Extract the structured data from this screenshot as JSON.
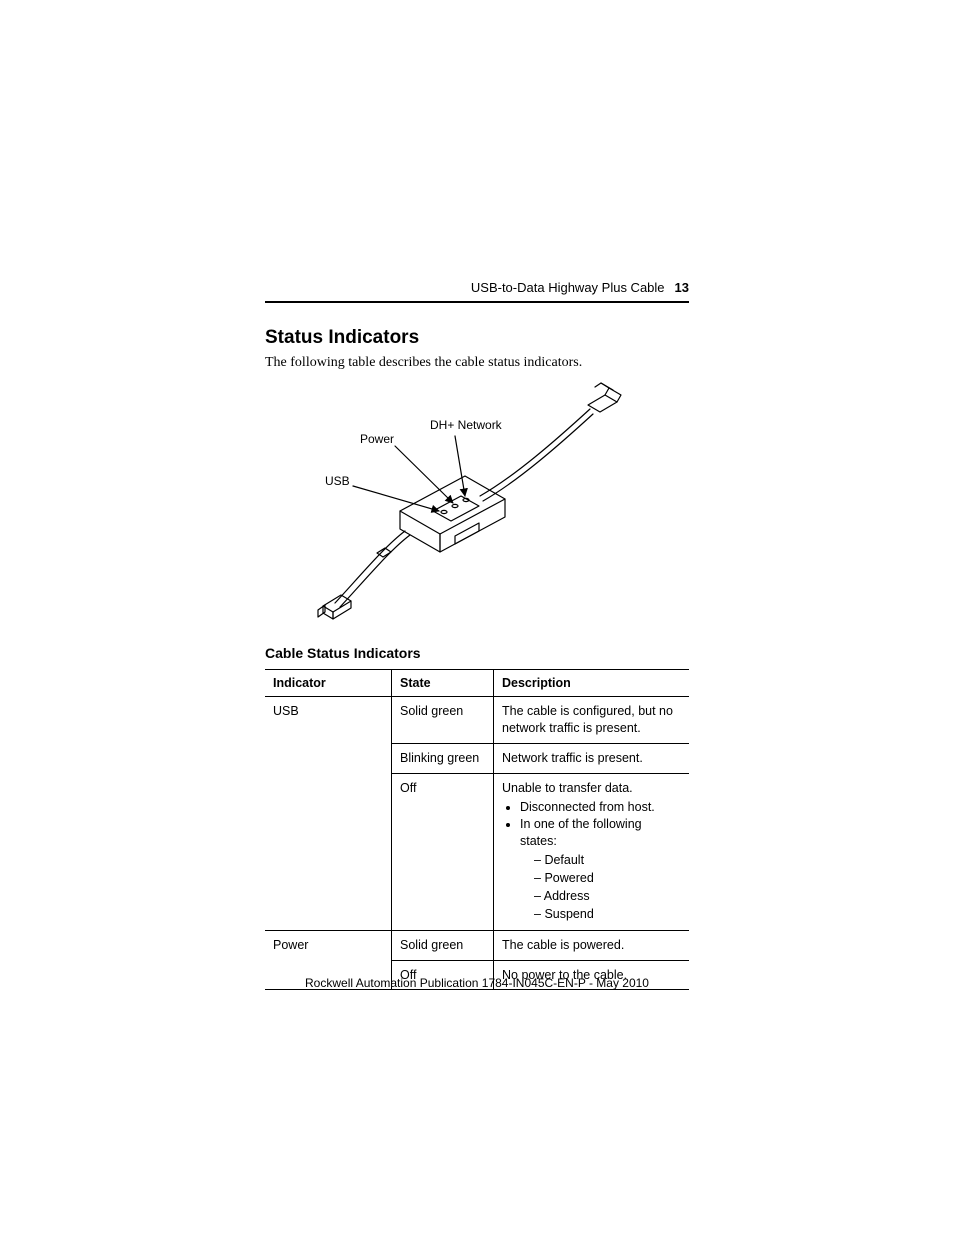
{
  "header": {
    "doc_title": "USB-to-Data Highway Plus Cable",
    "page_number": "13"
  },
  "section": {
    "title": "Status Indicators",
    "intro": "The following table describes the cable status indicators."
  },
  "diagram": {
    "labels": {
      "dhplus": "DH+ Network",
      "power": "Power",
      "usb": "USB"
    },
    "stroke_color": "#000000",
    "stroke_width": 1.2,
    "label_fontsize": 12
  },
  "table": {
    "caption": "Cable Status Indicators",
    "columns": [
      "Indicator",
      "State",
      "Description"
    ],
    "rows": [
      {
        "indicator": "USB",
        "state": "Solid green",
        "description": {
          "text": "The cable is configured, but no network traffic is present."
        },
        "first_of_group": true,
        "group_span": 3
      },
      {
        "indicator": "",
        "state": "Blinking green",
        "description": {
          "text": "Network traffic is present."
        }
      },
      {
        "indicator": "",
        "state": "Off",
        "description": {
          "text": "Unable to transfer data.",
          "bullets": [
            "Disconnected from host.",
            "In one of the following states:"
          ],
          "sub_bullets": [
            "Default",
            "Powered",
            "Address",
            "Suspend"
          ]
        }
      },
      {
        "indicator": "Power",
        "state": "Solid green",
        "description": {
          "text": "The cable is powered."
        },
        "first_of_group": true,
        "group_span": 2
      },
      {
        "indicator": "",
        "state": "Off",
        "description": {
          "text": "No power to the cable."
        }
      }
    ]
  },
  "footer": {
    "text": "Rockwell Automation Publication  1784-IN045C-EN-P - May 2010"
  }
}
